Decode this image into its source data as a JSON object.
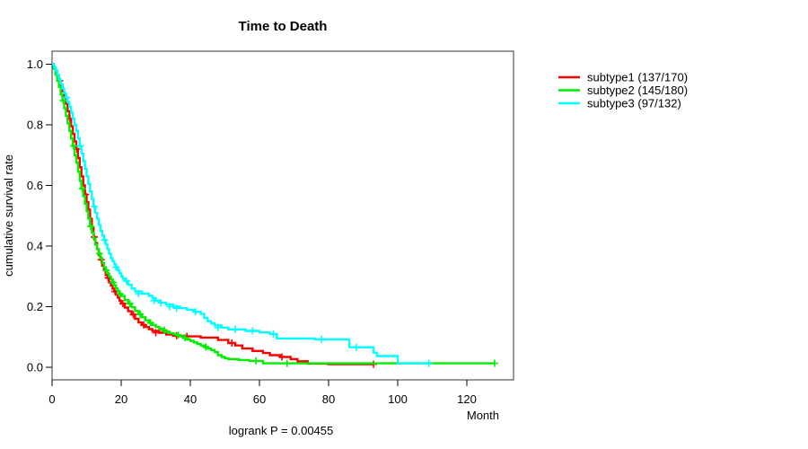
{
  "chart_data": {
    "type": "line",
    "variant": "kaplan-meier-step",
    "title": "Time to Death",
    "xlabel": "Month",
    "ylabel": "cumulative survival rate",
    "annotation": "logrank P = 0.00455",
    "grid": false,
    "legend_position": "right-outside",
    "xlim": [
      0,
      133.5
    ],
    "ylim": [
      -0.04,
      1.04
    ],
    "x_ticks": [
      0,
      20,
      40,
      60,
      80,
      100,
      120
    ],
    "y_ticks": [
      {
        "v": 0.0,
        "label": "0.0"
      },
      {
        "v": 0.2,
        "label": "0.2"
      },
      {
        "v": 0.4,
        "label": "0.4"
      },
      {
        "v": 0.6,
        "label": "0.6"
      },
      {
        "v": 0.8,
        "label": "0.8"
      },
      {
        "v": 1.0,
        "label": "1.0"
      }
    ],
    "series": [
      {
        "name": "subtype1",
        "label": "subtype1 (137/170)",
        "events": 137,
        "total": 170,
        "color": "#ff0000",
        "steps": [
          [
            0,
            1.0
          ],
          [
            0.5,
            0.99
          ],
          [
            1,
            0.975
          ],
          [
            1.5,
            0.96
          ],
          [
            2,
            0.945
          ],
          [
            2.5,
            0.93
          ],
          [
            3,
            0.91
          ],
          [
            3.5,
            0.89
          ],
          [
            4,
            0.87
          ],
          [
            4.5,
            0.845
          ],
          [
            5,
            0.82
          ],
          [
            5.5,
            0.795
          ],
          [
            6,
            0.77
          ],
          [
            6.5,
            0.745
          ],
          [
            7,
            0.72
          ],
          [
            7.5,
            0.69
          ],
          [
            8,
            0.66
          ],
          [
            8.5,
            0.63
          ],
          [
            9,
            0.6
          ],
          [
            9.5,
            0.57
          ],
          [
            10,
            0.545
          ],
          [
            10.5,
            0.52
          ],
          [
            11,
            0.49
          ],
          [
            11.5,
            0.46
          ],
          [
            12,
            0.43
          ],
          [
            12.5,
            0.41
          ],
          [
            13,
            0.39
          ],
          [
            13.5,
            0.37
          ],
          [
            14,
            0.355
          ],
          [
            14.5,
            0.335
          ],
          [
            15,
            0.32
          ],
          [
            15.5,
            0.305
          ],
          [
            16,
            0.295
          ],
          [
            16.5,
            0.28
          ],
          [
            17,
            0.27
          ],
          [
            17.5,
            0.26
          ],
          [
            18,
            0.25
          ],
          [
            18.5,
            0.24
          ],
          [
            19,
            0.23
          ],
          [
            19.5,
            0.22
          ],
          [
            20,
            0.21
          ],
          [
            21,
            0.197
          ],
          [
            22,
            0.185
          ],
          [
            23,
            0.174
          ],
          [
            24,
            0.16
          ],
          [
            25,
            0.148
          ],
          [
            26,
            0.14
          ],
          [
            27,
            0.133
          ],
          [
            28,
            0.126
          ],
          [
            29,
            0.12
          ],
          [
            31,
            0.114
          ],
          [
            33,
            0.108
          ],
          [
            35,
            0.104
          ],
          [
            38,
            0.102
          ],
          [
            43,
            0.098
          ],
          [
            48,
            0.09
          ],
          [
            51,
            0.08
          ],
          [
            53,
            0.072
          ],
          [
            55,
            0.062
          ],
          [
            58,
            0.054
          ],
          [
            61,
            0.047
          ],
          [
            63,
            0.04
          ],
          [
            66,
            0.034
          ],
          [
            69,
            0.027
          ],
          [
            71,
            0.02
          ],
          [
            74,
            0.012
          ],
          [
            80,
            0.01
          ],
          [
            93,
            0.01
          ]
        ],
        "censor_marks": [
          [
            2.2,
            0.945
          ],
          [
            5.2,
            0.82
          ],
          [
            7.2,
            0.72
          ],
          [
            9.7,
            0.57
          ],
          [
            12.2,
            0.43
          ],
          [
            14.2,
            0.355
          ],
          [
            16.2,
            0.295
          ],
          [
            18.2,
            0.25
          ],
          [
            20.5,
            0.21
          ],
          [
            23.5,
            0.174
          ],
          [
            26.5,
            0.14
          ],
          [
            30,
            0.114
          ],
          [
            36,
            0.104
          ],
          [
            39,
            0.102
          ],
          [
            52,
            0.08
          ],
          [
            66.5,
            0.034
          ],
          [
            93,
            0.01
          ]
        ]
      },
      {
        "name": "subtype2",
        "label": "subtype2 (145/180)",
        "events": 145,
        "total": 180,
        "color": "#00ee00",
        "steps": [
          [
            0,
            1.0
          ],
          [
            0.5,
            0.985
          ],
          [
            1,
            0.965
          ],
          [
            1.5,
            0.945
          ],
          [
            2,
            0.925
          ],
          [
            2.5,
            0.9
          ],
          [
            3,
            0.88
          ],
          [
            3.5,
            0.855
          ],
          [
            4,
            0.83
          ],
          [
            4.5,
            0.805
          ],
          [
            5,
            0.78
          ],
          [
            5.5,
            0.755
          ],
          [
            6,
            0.73
          ],
          [
            6.5,
            0.7
          ],
          [
            7,
            0.675
          ],
          [
            7.5,
            0.645
          ],
          [
            8,
            0.615
          ],
          [
            8.5,
            0.59
          ],
          [
            9,
            0.565
          ],
          [
            9.5,
            0.54
          ],
          [
            10,
            0.515
          ],
          [
            10.5,
            0.49
          ],
          [
            11,
            0.465
          ],
          [
            11.5,
            0.445
          ],
          [
            12,
            0.425
          ],
          [
            12.5,
            0.405
          ],
          [
            13,
            0.39
          ],
          [
            13.5,
            0.375
          ],
          [
            14,
            0.36
          ],
          [
            14.5,
            0.345
          ],
          [
            15,
            0.33
          ],
          [
            15.5,
            0.32
          ],
          [
            16,
            0.31
          ],
          [
            16.5,
            0.3
          ],
          [
            17,
            0.29
          ],
          [
            17.5,
            0.28
          ],
          [
            18,
            0.27
          ],
          [
            18.5,
            0.26
          ],
          [
            19,
            0.25
          ],
          [
            19.5,
            0.242
          ],
          [
            20,
            0.235
          ],
          [
            21,
            0.222
          ],
          [
            22,
            0.21
          ],
          [
            23,
            0.198
          ],
          [
            24,
            0.186
          ],
          [
            25,
            0.175
          ],
          [
            26,
            0.165
          ],
          [
            27,
            0.155
          ],
          [
            28,
            0.147
          ],
          [
            29,
            0.14
          ],
          [
            30,
            0.133
          ],
          [
            31,
            0.127
          ],
          [
            32,
            0.122
          ],
          [
            33,
            0.117
          ],
          [
            34,
            0.113
          ],
          [
            35,
            0.11
          ],
          [
            36,
            0.106
          ],
          [
            37,
            0.102
          ],
          [
            38,
            0.097
          ],
          [
            39,
            0.092
          ],
          [
            40,
            0.087
          ],
          [
            41,
            0.082
          ],
          [
            42,
            0.077
          ],
          [
            43,
            0.072
          ],
          [
            44,
            0.067
          ],
          [
            45,
            0.062
          ],
          [
            46,
            0.057
          ],
          [
            47,
            0.05
          ],
          [
            48,
            0.04
          ],
          [
            49,
            0.034
          ],
          [
            50,
            0.03
          ],
          [
            51,
            0.027
          ],
          [
            54,
            0.024
          ],
          [
            57,
            0.021
          ],
          [
            61,
            0.013
          ],
          [
            128,
            0.013
          ]
        ],
        "censor_marks": [
          [
            3.2,
            0.88
          ],
          [
            6.2,
            0.73
          ],
          [
            8.7,
            0.59
          ],
          [
            11.2,
            0.465
          ],
          [
            13.7,
            0.375
          ],
          [
            15.7,
            0.32
          ],
          [
            17.7,
            0.28
          ],
          [
            19.7,
            0.242
          ],
          [
            22.5,
            0.21
          ],
          [
            25.5,
            0.175
          ],
          [
            28.5,
            0.147
          ],
          [
            32.5,
            0.122
          ],
          [
            36.5,
            0.106
          ],
          [
            38.5,
            0.097
          ],
          [
            44.5,
            0.067
          ],
          [
            59,
            0.021
          ],
          [
            68,
            0.013
          ],
          [
            128,
            0.013
          ]
        ]
      },
      {
        "name": "subtype3",
        "label": "subtype3 (97/132)",
        "events": 97,
        "total": 132,
        "color": "#00ffff",
        "steps": [
          [
            0,
            1.0
          ],
          [
            0.5,
            0.99
          ],
          [
            1,
            0.98
          ],
          [
            1.5,
            0.965
          ],
          [
            2,
            0.95
          ],
          [
            2.5,
            0.935
          ],
          [
            3,
            0.92
          ],
          [
            3.5,
            0.905
          ],
          [
            4,
            0.89
          ],
          [
            4.5,
            0.875
          ],
          [
            5,
            0.86
          ],
          [
            5.5,
            0.84
          ],
          [
            6,
            0.82
          ],
          [
            6.5,
            0.8
          ],
          [
            7,
            0.78
          ],
          [
            7.5,
            0.755
          ],
          [
            8,
            0.73
          ],
          [
            8.5,
            0.705
          ],
          [
            9,
            0.68
          ],
          [
            9.5,
            0.655
          ],
          [
            10,
            0.63
          ],
          [
            10.5,
            0.605
          ],
          [
            11,
            0.58
          ],
          [
            11.5,
            0.555
          ],
          [
            12,
            0.53
          ],
          [
            12.5,
            0.51
          ],
          [
            13,
            0.49
          ],
          [
            13.5,
            0.47
          ],
          [
            14,
            0.45
          ],
          [
            14.5,
            0.435
          ],
          [
            15,
            0.42
          ],
          [
            15.5,
            0.405
          ],
          [
            16,
            0.39
          ],
          [
            16.5,
            0.375
          ],
          [
            17,
            0.36
          ],
          [
            17.5,
            0.35
          ],
          [
            18,
            0.34
          ],
          [
            18.5,
            0.33
          ],
          [
            19,
            0.32
          ],
          [
            19.5,
            0.31
          ],
          [
            20,
            0.3
          ],
          [
            20.5,
            0.292
          ],
          [
            21,
            0.285
          ],
          [
            22,
            0.272
          ],
          [
            23,
            0.26
          ],
          [
            24,
            0.25
          ],
          [
            26,
            0.243
          ],
          [
            28,
            0.236
          ],
          [
            29,
            0.228
          ],
          [
            30,
            0.22
          ],
          [
            31,
            0.213
          ],
          [
            33,
            0.207
          ],
          [
            35,
            0.2
          ],
          [
            37,
            0.195
          ],
          [
            39,
            0.19
          ],
          [
            41,
            0.183
          ],
          [
            43,
            0.176
          ],
          [
            44,
            0.163
          ],
          [
            45,
            0.152
          ],
          [
            46,
            0.145
          ],
          [
            47,
            0.138
          ],
          [
            49,
            0.131
          ],
          [
            51,
            0.125
          ],
          [
            56,
            0.12
          ],
          [
            60,
            0.115
          ],
          [
            63,
            0.11
          ],
          [
            65,
            0.095
          ],
          [
            76,
            0.092
          ],
          [
            86,
            0.066
          ],
          [
            93,
            0.048
          ],
          [
            94,
            0.037
          ],
          [
            100,
            0.013
          ],
          [
            109,
            0.013
          ]
        ],
        "censor_marks": [
          [
            4.2,
            0.89
          ],
          [
            8.2,
            0.73
          ],
          [
            12.2,
            0.53
          ],
          [
            15.2,
            0.42
          ],
          [
            18.5,
            0.33
          ],
          [
            21.5,
            0.285
          ],
          [
            25,
            0.243
          ],
          [
            29.5,
            0.22
          ],
          [
            31.5,
            0.213
          ],
          [
            34,
            0.2
          ],
          [
            36,
            0.195
          ],
          [
            41.5,
            0.183
          ],
          [
            48,
            0.131
          ],
          [
            53,
            0.125
          ],
          [
            58,
            0.12
          ],
          [
            64,
            0.11
          ],
          [
            78,
            0.092
          ],
          [
            88,
            0.066
          ],
          [
            109,
            0.013
          ]
        ]
      }
    ]
  }
}
